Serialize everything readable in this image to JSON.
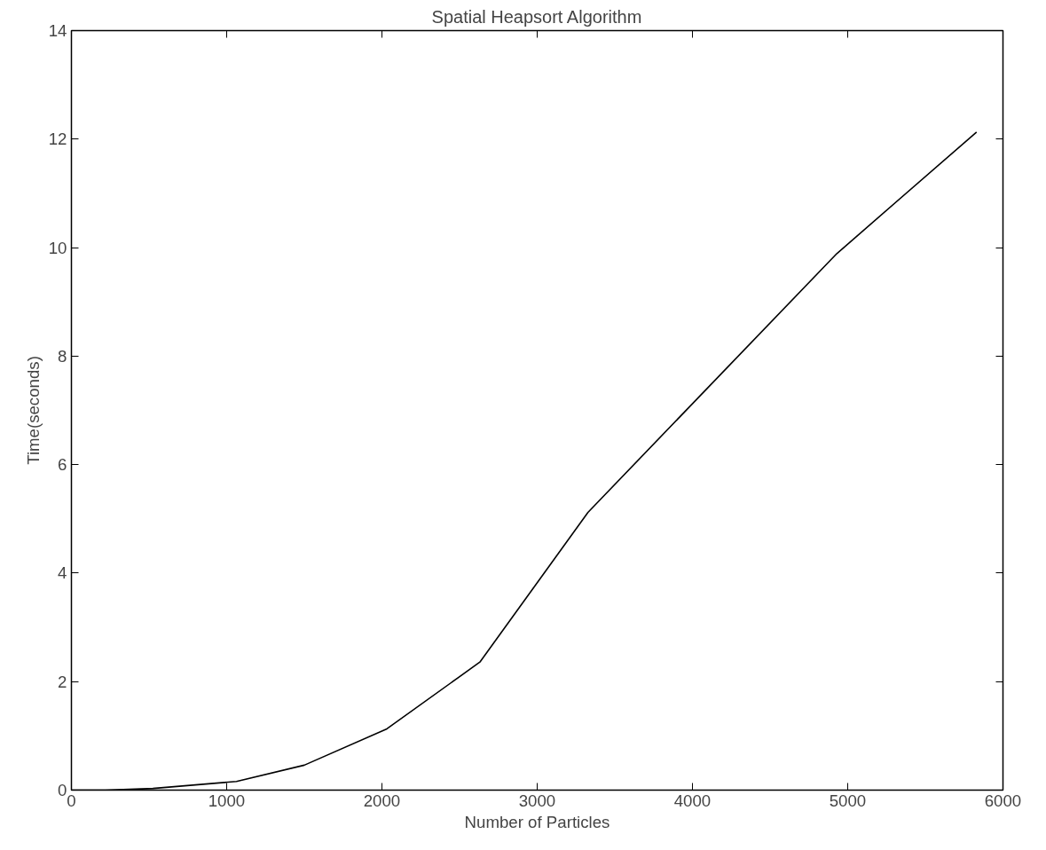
{
  "chart_data": {
    "type": "line",
    "title": "Spatial Heapsort Algorithm",
    "xlabel": "Number of Particles",
    "ylabel": "Time(seconds)",
    "x": [
      0,
      220,
      525,
      1063,
      1500,
      2032,
      2631,
      3327,
      4930,
      5830
    ],
    "series": [
      {
        "color": "#000000",
        "values": [
          0,
          0,
          0.03,
          0.16,
          0.46,
          1.13,
          2.36,
          5.12,
          9.89,
          12.13
        ]
      }
    ],
    "xlim": [
      0,
      6000
    ],
    "xticks": [
      0,
      1000,
      2000,
      3000,
      4000,
      5000,
      6000
    ],
    "ylim": [
      0,
      14
    ],
    "yticks": [
      0,
      2,
      4,
      6,
      8,
      10,
      12,
      14
    ],
    "grid": false,
    "marker": "none",
    "line_style": "solid"
  }
}
